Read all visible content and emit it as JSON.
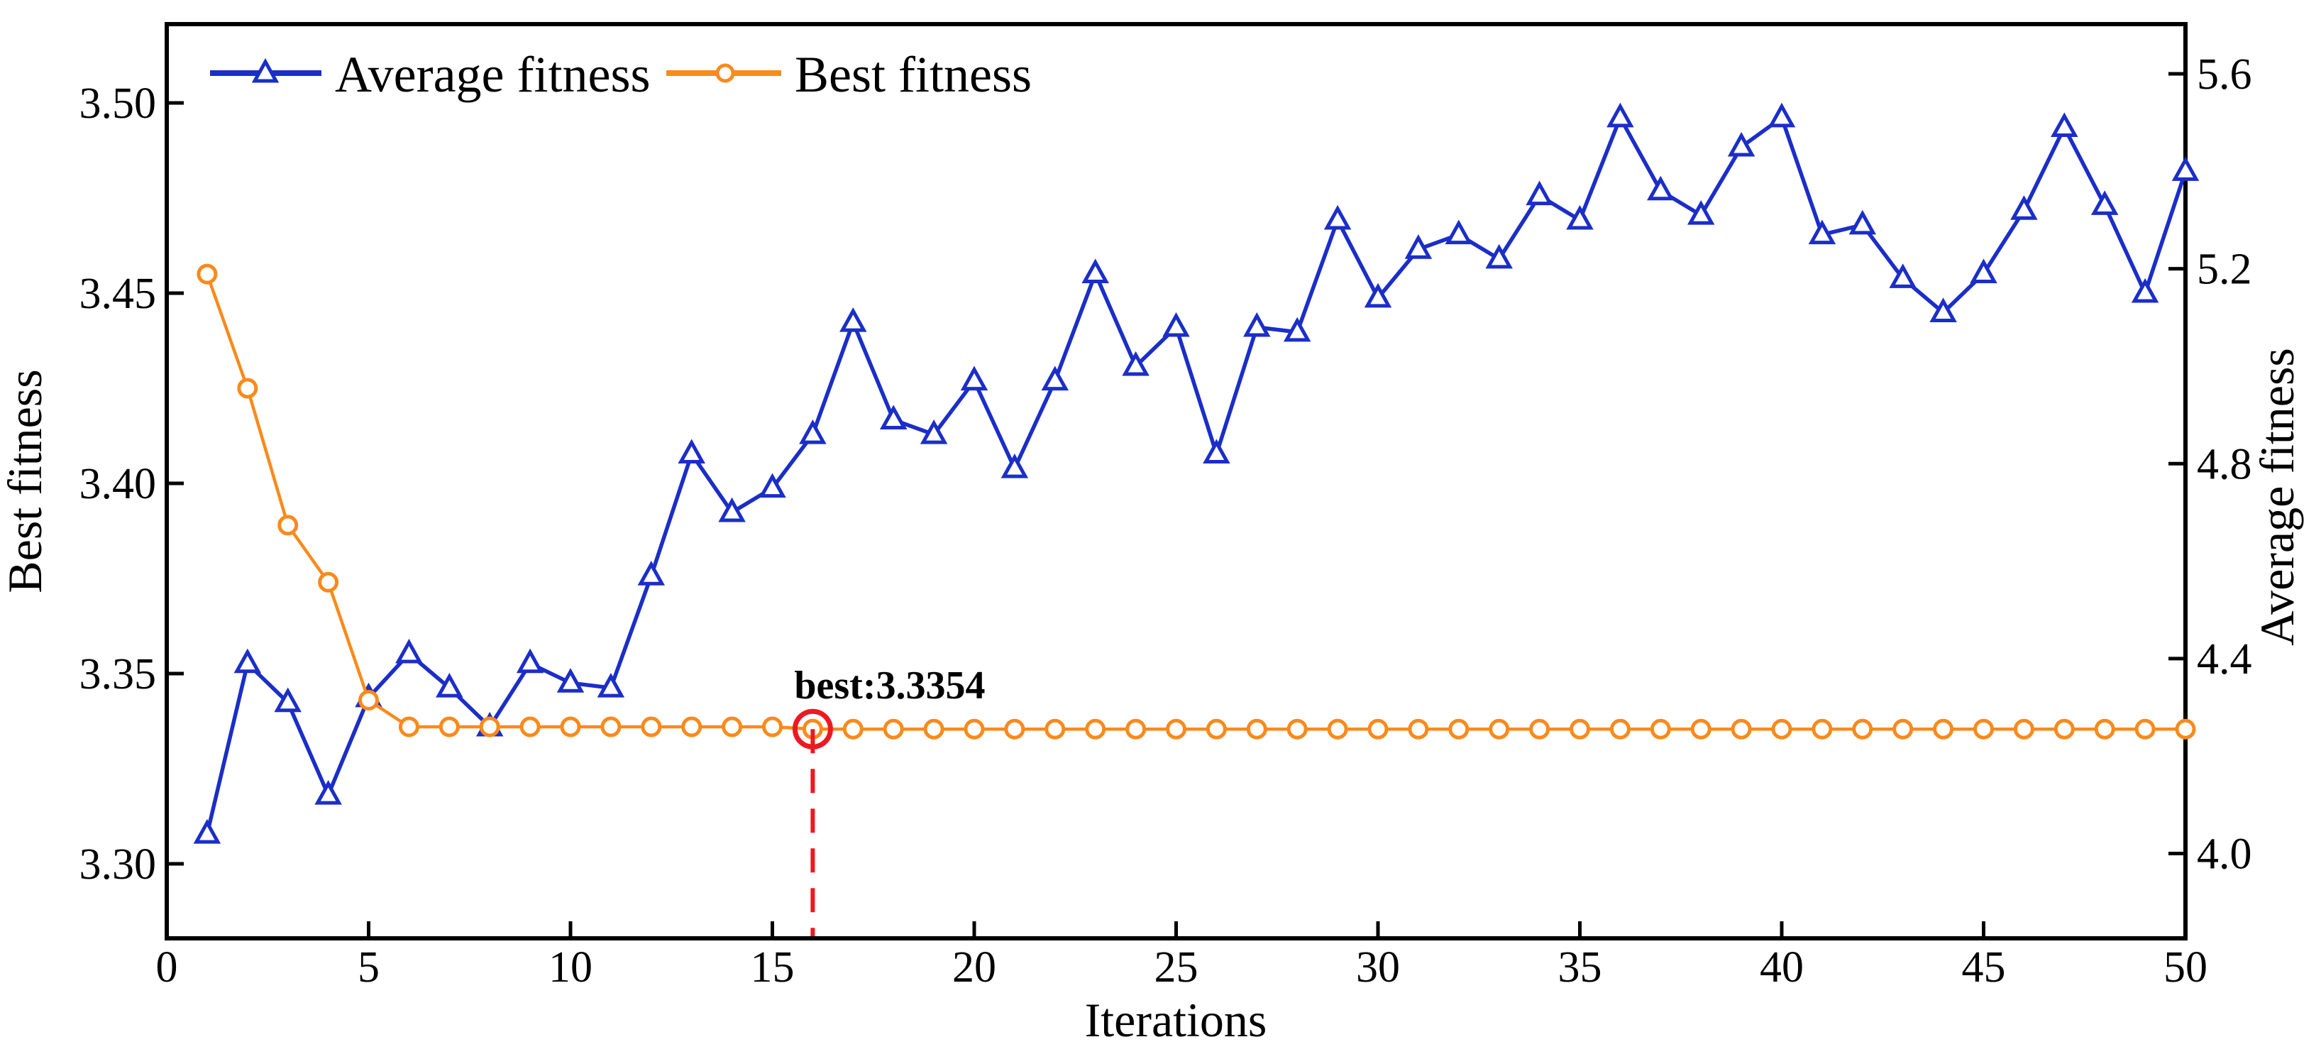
{
  "chart_data": {
    "type": "line",
    "xlabel": "Iterations",
    "ylabel_left": "Best fitness",
    "ylabel_right": "Average fitness",
    "x_range": [
      0,
      50
    ],
    "left_range": [
      3.2804,
      3.5207
    ],
    "right_range": [
      3.826,
      5.702
    ],
    "x_ticks": [
      0,
      5,
      10,
      15,
      20,
      25,
      30,
      35,
      40,
      45,
      50
    ],
    "left_tick_labels": [
      "3.30",
      "3.35",
      "3.40",
      "3.45",
      "3.50"
    ],
    "left_tick_values": [
      3.3,
      3.35,
      3.4,
      3.45,
      3.5
    ],
    "right_tick_labels": [
      "4.0",
      "4.4",
      "4.8",
      "5.2",
      "5.6"
    ],
    "right_tick_values": [
      4.0,
      4.4,
      4.8,
      5.2,
      5.6
    ],
    "grid": "off",
    "legend_position": "top-left-inside",
    "colors": {
      "average": "#1B2EC8",
      "best": "#F98A1C",
      "annotation": "#EB1A22",
      "axis": "#000000"
    },
    "series": [
      {
        "name": "Average fitness",
        "axis": "right",
        "marker": "triangle",
        "x": [
          1,
          2,
          3,
          4,
          5,
          6,
          7,
          8,
          9,
          10,
          11,
          12,
          13,
          14,
          15,
          16,
          17,
          18,
          19,
          20,
          21,
          22,
          23,
          24,
          25,
          26,
          27,
          28,
          29,
          30,
          31,
          32,
          33,
          34,
          35,
          36,
          37,
          38,
          39,
          40,
          41,
          42,
          43,
          44,
          45,
          46,
          47,
          48,
          49,
          50
        ],
        "values": [
          4.04,
          4.39,
          4.31,
          4.12,
          4.32,
          4.41,
          4.34,
          4.26,
          4.39,
          4.35,
          4.34,
          4.57,
          4.82,
          4.7,
          4.75,
          4.86,
          5.09,
          4.89,
          4.86,
          4.97,
          4.79,
          4.97,
          5.19,
          5.0,
          5.08,
          4.82,
          5.08,
          5.07,
          5.3,
          5.14,
          5.24,
          5.27,
          5.22,
          5.35,
          5.3,
          5.51,
          5.36,
          5.31,
          5.45,
          5.51,
          5.27,
          5.29,
          5.18,
          5.11,
          5.19,
          5.32,
          5.49,
          5.33,
          5.15,
          5.4
        ]
      },
      {
        "name": "Best fitness",
        "axis": "left",
        "marker": "circle",
        "x": [
          1,
          2,
          3,
          4,
          5,
          6,
          7,
          8,
          9,
          10,
          11,
          12,
          13,
          14,
          15,
          16,
          17,
          18,
          19,
          20,
          21,
          22,
          23,
          24,
          25,
          26,
          27,
          28,
          29,
          30,
          31,
          32,
          33,
          34,
          35,
          36,
          37,
          38,
          39,
          40,
          41,
          42,
          43,
          44,
          45,
          46,
          47,
          48,
          49,
          50
        ],
        "values": [
          3.455,
          3.425,
          3.389,
          3.374,
          3.343,
          3.336,
          3.336,
          3.336,
          3.336,
          3.336,
          3.336,
          3.336,
          3.336,
          3.336,
          3.336,
          3.3354,
          3.3354,
          3.3354,
          3.3354,
          3.3354,
          3.3354,
          3.3354,
          3.3354,
          3.3354,
          3.3354,
          3.3354,
          3.3354,
          3.3354,
          3.3354,
          3.3354,
          3.3354,
          3.3354,
          3.3354,
          3.3354,
          3.3354,
          3.3354,
          3.3354,
          3.3354,
          3.3354,
          3.3354,
          3.3354,
          3.3354,
          3.3354,
          3.3354,
          3.3354,
          3.3354,
          3.3354,
          3.3354,
          3.3354,
          3.3354
        ]
      }
    ],
    "annotation": {
      "label": "best:3.3354",
      "x": 16,
      "value": 3.3354
    }
  }
}
